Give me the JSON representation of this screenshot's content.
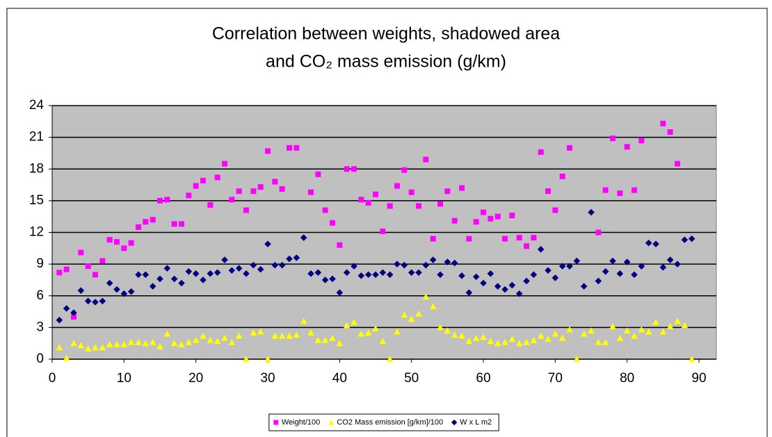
{
  "chart_data": {
    "type": "scatter",
    "title": [
      "Correlation between weights, shadowed area",
      "and CO₂ mass emission (g/km)"
    ],
    "xlim": [
      0,
      90
    ],
    "xticks": [
      0,
      10,
      20,
      30,
      40,
      50,
      60,
      70,
      80,
      90
    ],
    "ylim": [
      0,
      24
    ],
    "yticks": [
      0,
      3,
      6,
      9,
      12,
      15,
      18,
      21,
      24
    ],
    "grid": true,
    "legend": "bottom",
    "series": [
      {
        "name": "Weight/100",
        "color": "#ff00ff",
        "marker": "square",
        "x": [
          1,
          2,
          3,
          4,
          5,
          6,
          7,
          8,
          9,
          10,
          11,
          12,
          13,
          14,
          15,
          16,
          17,
          18,
          19,
          20,
          21,
          22,
          23,
          24,
          25,
          26,
          27,
          28,
          29,
          30,
          31,
          32,
          33,
          34,
          36,
          37,
          38,
          39,
          40,
          41,
          42,
          43,
          44,
          45,
          46,
          47,
          48,
          49,
          50,
          51,
          52,
          53,
          54,
          55,
          56,
          57,
          58,
          59,
          60,
          61,
          62,
          63,
          64,
          65,
          66,
          67,
          68,
          69,
          70,
          71,
          72,
          76,
          77,
          78,
          79,
          80,
          81,
          82,
          85,
          86,
          87
        ],
        "values": [
          8.2,
          8.5,
          4.0,
          10.1,
          8.8,
          8.0,
          9.3,
          11.3,
          11.1,
          10.5,
          11.0,
          12.5,
          13.0,
          13.2,
          15.0,
          15.1,
          12.8,
          12.8,
          15.5,
          16.4,
          16.9,
          14.6,
          17.2,
          18.5,
          15.1,
          15.9,
          14.1,
          15.9,
          16.3,
          19.7,
          16.8,
          16.1,
          20.0,
          20.0,
          15.8,
          17.5,
          14.1,
          12.9,
          10.8,
          18.0,
          18.0,
          15.1,
          14.8,
          15.6,
          12.1,
          14.5,
          16.4,
          17.9,
          15.8,
          14.5,
          18.9,
          11.4,
          14.7,
          15.9,
          13.1,
          16.2,
          11.4,
          13.0,
          13.9,
          13.3,
          13.5,
          11.4,
          13.6,
          11.5,
          10.7,
          11.5,
          19.6,
          15.9,
          14.1,
          17.3,
          20.0,
          12.0,
          16.0,
          20.9,
          15.7,
          20.1,
          16.0,
          20.7,
          22.3,
          21.5,
          18.5
        ]
      },
      {
        "name": "CO2 Mass emission [g/km]/100",
        "color": "#ffff00",
        "marker": "triangle",
        "x": [
          1,
          2,
          3,
          4,
          5,
          6,
          7,
          8,
          9,
          10,
          11,
          12,
          13,
          14,
          15,
          16,
          17,
          18,
          19,
          20,
          21,
          22,
          23,
          24,
          25,
          26,
          27,
          28,
          29,
          30,
          31,
          32,
          33,
          34,
          35,
          36,
          37,
          38,
          39,
          40,
          41,
          42,
          43,
          44,
          45,
          46,
          47,
          48,
          49,
          50,
          51,
          52,
          53,
          54,
          55,
          56,
          57,
          58,
          59,
          60,
          61,
          62,
          63,
          64,
          65,
          66,
          67,
          68,
          69,
          70,
          71,
          72,
          73,
          74,
          75,
          76,
          77,
          78,
          79,
          80,
          81,
          82,
          83,
          84,
          85,
          86,
          87,
          88,
          89
        ],
        "values": [
          1.1,
          0.1,
          1.5,
          1.3,
          1.0,
          1.1,
          1.1,
          1.4,
          1.4,
          1.4,
          1.6,
          1.6,
          1.5,
          1.6,
          1.2,
          2.4,
          1.5,
          1.4,
          1.6,
          1.8,
          2.2,
          1.8,
          1.7,
          2.0,
          1.6,
          2.2,
          0.0,
          2.5,
          2.6,
          0.0,
          2.2,
          2.2,
          2.2,
          2.3,
          3.6,
          2.5,
          1.8,
          1.8,
          2.0,
          1.5,
          3.2,
          3.5,
          2.4,
          2.5,
          2.9,
          1.7,
          0.0,
          2.6,
          4.2,
          3.8,
          4.3,
          5.9,
          5.0,
          3.0,
          2.7,
          2.3,
          2.2,
          1.7,
          2.0,
          2.1,
          1.7,
          1.5,
          1.6,
          1.9,
          1.5,
          1.6,
          1.8,
          2.2,
          1.9,
          2.4,
          2.0,
          2.8,
          0.0,
          2.4,
          2.7,
          1.6,
          1.6,
          3.1,
          2.0,
          2.7,
          2.2,
          2.8,
          2.6,
          3.5,
          2.6,
          3.1,
          3.6,
          3.2,
          0.0
        ]
      },
      {
        "name": "W x L m2",
        "color": "#000080",
        "marker": "diamond",
        "x": [
          1,
          2,
          3,
          4,
          5,
          6,
          7,
          8,
          9,
          10,
          11,
          12,
          13,
          14,
          15,
          16,
          17,
          18,
          19,
          20,
          21,
          22,
          23,
          24,
          25,
          26,
          27,
          28,
          29,
          30,
          31,
          32,
          33,
          34,
          35,
          36,
          37,
          38,
          39,
          40,
          41,
          42,
          43,
          44,
          45,
          46,
          47,
          48,
          49,
          50,
          51,
          52,
          53,
          54,
          55,
          56,
          57,
          58,
          59,
          60,
          61,
          62,
          63,
          64,
          65,
          66,
          67,
          68,
          69,
          70,
          71,
          72,
          73,
          74,
          75,
          76,
          77,
          78,
          79,
          80,
          81,
          82,
          83,
          84,
          85,
          86,
          87,
          88,
          89
        ],
        "values": [
          3.7,
          4.8,
          4.4,
          6.5,
          5.5,
          5.4,
          5.5,
          7.2,
          6.6,
          6.2,
          6.4,
          8.0,
          8.0,
          6.9,
          7.6,
          8.6,
          7.6,
          7.2,
          8.3,
          8.1,
          7.5,
          8.1,
          8.2,
          9.4,
          8.4,
          8.6,
          8.1,
          8.9,
          8.5,
          10.9,
          8.9,
          8.9,
          9.5,
          9.6,
          11.5,
          8.1,
          8.2,
          7.5,
          7.6,
          6.3,
          8.2,
          8.8,
          7.9,
          8.0,
          8.0,
          8.2,
          8.0,
          9.0,
          8.9,
          8.2,
          8.2,
          8.9,
          9.4,
          8.0,
          9.2,
          9.1,
          7.9,
          6.3,
          7.8,
          7.2,
          8.1,
          6.9,
          6.6,
          7.0,
          6.2,
          7.4,
          8.0,
          10.4,
          8.4,
          7.7,
          8.8,
          8.8,
          9.3,
          6.9,
          13.9,
          7.4,
          8.3,
          9.3,
          8.1,
          9.2,
          8.0,
          8.8,
          11.0,
          10.9,
          8.7,
          9.4,
          9.0,
          11.3,
          11.4
        ]
      }
    ]
  }
}
